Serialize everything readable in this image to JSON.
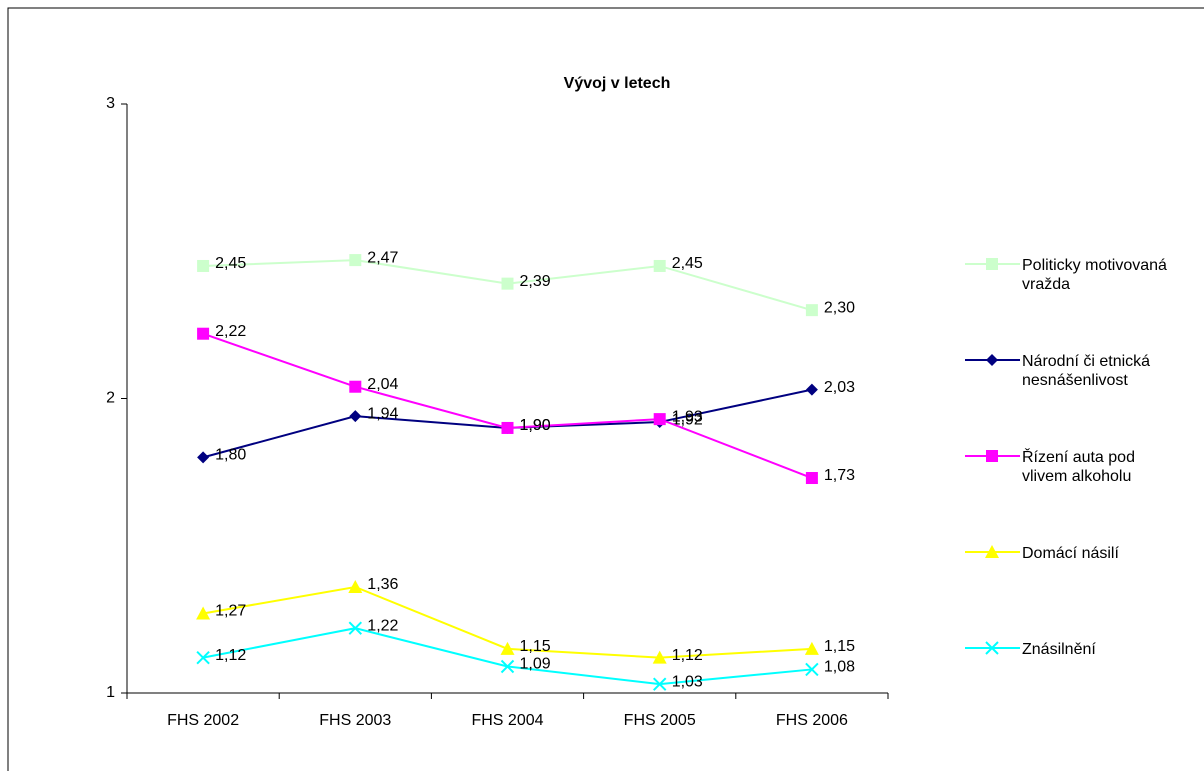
{
  "chart_data": {
    "type": "line",
    "title": "Vývoj v letech",
    "categories": [
      "FHS 2002",
      "FHS 2003",
      "FHS 2004",
      "FHS 2005",
      "FHS 2006"
    ],
    "ylim": [
      1,
      3
    ],
    "yticks": [
      1,
      2,
      3
    ],
    "series": [
      {
        "name": "Politicky motivovaná vražda",
        "color": "#ccffcc",
        "marker": "square",
        "values": [
          2.45,
          2.47,
          2.39,
          2.45,
          2.3
        ],
        "value_labels": [
          "2,45",
          "2,47",
          "2,39",
          "2,45",
          "2,30"
        ]
      },
      {
        "name": "Národní či etnická nesnášenlivost",
        "color": "#000080",
        "marker": "diamond",
        "values": [
          1.8,
          1.94,
          1.9,
          1.92,
          2.03
        ],
        "value_labels": [
          "1,80",
          "1,94",
          "1,90",
          "1,92",
          "2,03"
        ]
      },
      {
        "name": "Řízení auta pod vlivem alkoholu",
        "color": "#ff00ff",
        "marker": "square",
        "values": [
          2.22,
          2.04,
          1.9,
          1.93,
          1.73
        ],
        "value_labels": [
          "2,22",
          "2,04",
          "1,90",
          "1,93",
          "1,73"
        ]
      },
      {
        "name": "Domácí násilí",
        "color": "#ffff00",
        "marker": "triangle",
        "values": [
          1.27,
          1.36,
          1.15,
          1.12,
          1.15
        ],
        "value_labels": [
          "1,27",
          "1,36",
          "1,15",
          "1,12",
          "1,15"
        ]
      },
      {
        "name": "Znásilnění",
        "color": "#00ffff",
        "marker": "x",
        "values": [
          1.12,
          1.22,
          1.09,
          1.03,
          1.08
        ],
        "value_labels": [
          "1,12",
          "1,22",
          "1,09",
          "1,03",
          "1,08"
        ]
      }
    ]
  }
}
